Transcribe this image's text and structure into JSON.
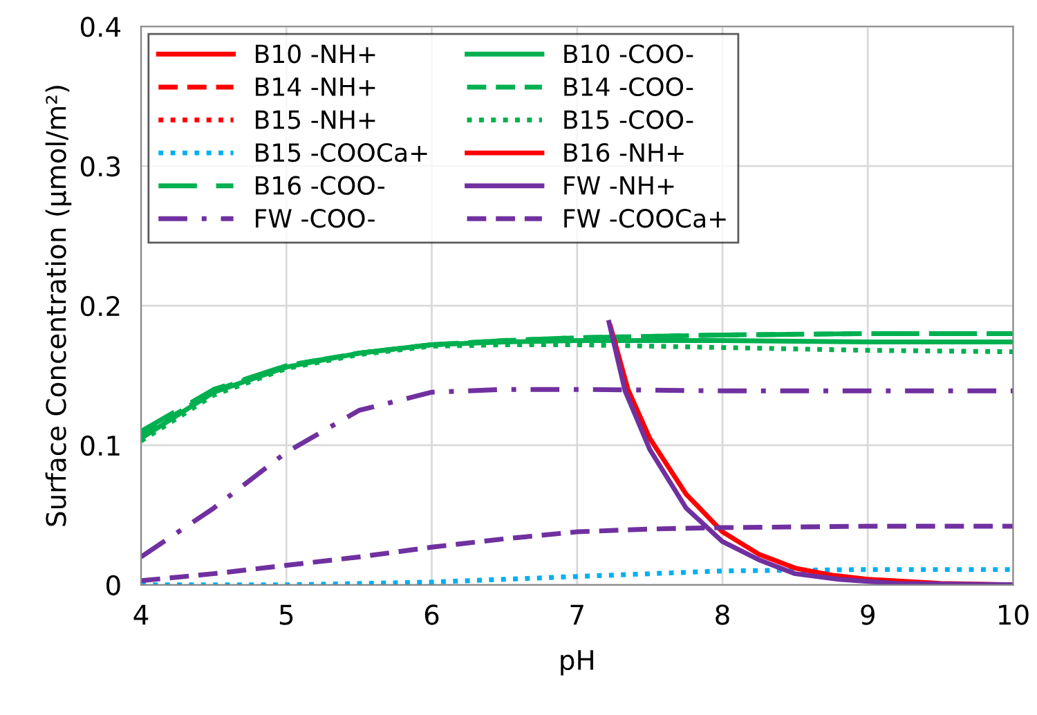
{
  "chart_data": {
    "type": "line",
    "xlabel": "pH",
    "ylabel": "Surface Concentration (μmol/m²)",
    "xlim": [
      4,
      10
    ],
    "ylim": [
      0,
      0.4
    ],
    "xticks": [
      4,
      5,
      6,
      7,
      8,
      9,
      10
    ],
    "yticks": [
      0,
      0.1,
      0.2,
      0.3,
      0.4
    ],
    "grid": true,
    "legend": "top left",
    "marker": "none",
    "series": [
      {
        "name": "B10 -NH+",
        "color": "#ff0000",
        "line_style": "solid"
      },
      {
        "name": "B14 -NH+",
        "color": "#ff0000",
        "line_style": "dashed"
      },
      {
        "name": "B15 -NH+",
        "color": "#ff0000",
        "line_style": "dotted"
      },
      {
        "name": "B15 -COOCa+",
        "color": "#00b0f0",
        "line_style": "dotted",
        "x": [
          4,
          5,
          6,
          6.5,
          7,
          7.5,
          8,
          9,
          10
        ],
        "values": [
          0,
          0,
          0.002,
          0.004,
          0.006,
          0.008,
          0.01,
          0.011,
          0.011
        ]
      },
      {
        "name": "B16 -COO-",
        "color": "#00b050",
        "line_style": "longdash",
        "x": [
          4,
          4.5,
          5,
          5.5,
          6,
          6.5,
          7,
          8,
          9,
          10
        ],
        "values": [
          0.11,
          0.14,
          0.157,
          0.166,
          0.172,
          0.175,
          0.177,
          0.179,
          0.18,
          0.18
        ]
      },
      {
        "name": "FW -COO-",
        "color": "#7030a0",
        "line_style": "dashdot",
        "x": [
          4,
          4.5,
          5,
          5.5,
          6,
          6.5,
          7,
          8,
          9,
          10
        ],
        "values": [
          0.02,
          0.055,
          0.095,
          0.125,
          0.138,
          0.14,
          0.14,
          0.139,
          0.139,
          0.139
        ]
      },
      {
        "name": "B10 -COO-",
        "color": "#00b050",
        "line_style": "solid",
        "x": [
          4,
          4.5,
          5,
          5.5,
          6,
          6.5,
          7,
          8,
          9,
          10
        ],
        "values": [
          0.105,
          0.138,
          0.156,
          0.166,
          0.172,
          0.174,
          0.175,
          0.175,
          0.174,
          0.174
        ]
      },
      {
        "name": "B14 -COO-",
        "color": "#00b050",
        "line_style": "dashed",
        "x": [
          4,
          4.5,
          5,
          5.5,
          6,
          6.5,
          7,
          8,
          9,
          10
        ],
        "values": [
          0.107,
          0.139,
          0.157,
          0.166,
          0.172,
          0.175,
          0.177,
          0.179,
          0.18,
          0.18
        ]
      },
      {
        "name": "B15 -COO-",
        "color": "#00b050",
        "line_style": "dotted",
        "x": [
          4,
          4.5,
          5,
          5.5,
          6,
          6.5,
          7,
          8,
          9,
          10
        ],
        "values": [
          0.103,
          0.136,
          0.155,
          0.165,
          0.171,
          0.172,
          0.172,
          0.17,
          0.168,
          0.167
        ]
      },
      {
        "name": "B16 -NH+",
        "color": "#ff0000",
        "line_style": "solid",
        "x": [
          7.23,
          7.35,
          7.5,
          7.75,
          8,
          8.25,
          8.5,
          8.75,
          9,
          9.5,
          10
        ],
        "values": [
          0.185,
          0.14,
          0.105,
          0.065,
          0.038,
          0.022,
          0.012,
          0.007,
          0.004,
          0.001,
          0
        ]
      },
      {
        "name": "FW -NH+",
        "color": "#7030a0",
        "line_style": "solid",
        "x": [
          7.22,
          7.33,
          7.5,
          7.75,
          8,
          8.25,
          8.5,
          8.8,
          9.2,
          10
        ],
        "values": [
          0.188,
          0.139,
          0.097,
          0.055,
          0.031,
          0.018,
          0.008,
          0.004,
          0.001,
          0
        ]
      },
      {
        "name": "FW -COOCa+",
        "color": "#7030a0",
        "line_style": "dashed",
        "x": [
          4,
          4.5,
          5,
          5.5,
          6,
          6.5,
          7,
          7.5,
          8,
          9,
          10
        ],
        "values": [
          0.003,
          0.008,
          0.014,
          0.02,
          0.027,
          0.033,
          0.038,
          0.04,
          0.041,
          0.042,
          0.042
        ]
      }
    ]
  }
}
